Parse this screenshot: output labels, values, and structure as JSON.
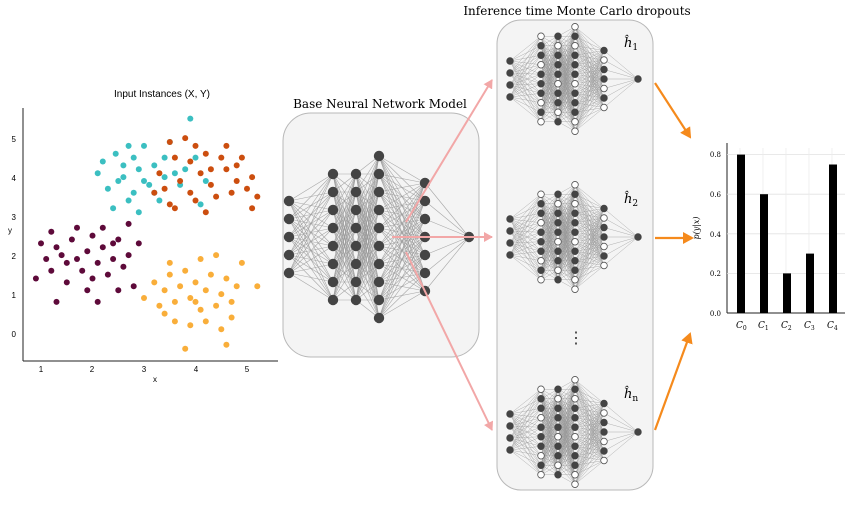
{
  "scatter": {
    "title": "Input Instances (X, Y)",
    "xlabel": "x",
    "ylabel": "y",
    "xticks": [
      "1",
      "2",
      "3",
      "4",
      "5"
    ],
    "yticks": [
      "0",
      "1",
      "2",
      "3",
      "4",
      "5"
    ],
    "colors": {
      "cyan": "#3bbfc1",
      "orange": "#cc4e0f",
      "purple": "#5e0a3a",
      "yellow": "#f9ae3a"
    }
  },
  "chart_data": {
    "type": "scatter",
    "title": "Input Instances (X, Y)",
    "xlabel": "x",
    "ylabel": "y",
    "xlim": [
      0.65,
      5.6
    ],
    "ylim": [
      -0.65,
      5.85
    ],
    "series": [
      {
        "color": "#3bbfc1",
        "points": [
          [
            2.2,
            4.5
          ],
          [
            2.45,
            4.7
          ],
          [
            2.6,
            4.1
          ],
          [
            2.8,
            4.6
          ],
          [
            3.0,
            4.9
          ],
          [
            3.2,
            4.4
          ],
          [
            2.3,
            3.8
          ],
          [
            2.7,
            3.5
          ],
          [
            3.1,
            3.9
          ],
          [
            3.4,
            4.6
          ],
          [
            2.9,
            4.3
          ],
          [
            3.6,
            4.2
          ],
          [
            2.5,
            4.0
          ],
          [
            3.8,
            4.3
          ],
          [
            3.3,
            3.5
          ],
          [
            2.1,
            4.2
          ],
          [
            2.9,
            3.2
          ],
          [
            3.5,
            5.0
          ],
          [
            2.7,
            4.9
          ],
          [
            3.2,
            3.7
          ],
          [
            4.0,
            4.6
          ],
          [
            4.2,
            4.0
          ],
          [
            3.9,
            5.6
          ],
          [
            2.4,
            3.3
          ],
          [
            3.7,
            3.9
          ],
          [
            3.0,
            4.0
          ],
          [
            2.6,
            4.4
          ],
          [
            3.4,
            4.1
          ],
          [
            4.1,
            3.4
          ],
          [
            2.8,
            3.7
          ]
        ]
      },
      {
        "color": "#cc4e0f",
        "points": [
          [
            3.4,
            3.8
          ],
          [
            3.7,
            4.0
          ],
          [
            3.9,
            3.7
          ],
          [
            4.1,
            4.2
          ],
          [
            4.3,
            3.9
          ],
          [
            4.6,
            4.3
          ],
          [
            4.8,
            4.0
          ],
          [
            5.0,
            3.8
          ],
          [
            5.2,
            3.6
          ],
          [
            3.6,
            4.6
          ],
          [
            3.8,
            5.1
          ],
          [
            4.2,
            4.7
          ],
          [
            4.5,
            4.6
          ],
          [
            3.2,
            3.7
          ],
          [
            3.5,
            3.4
          ],
          [
            4.0,
            3.5
          ],
          [
            4.4,
            3.6
          ],
          [
            4.7,
            3.7
          ],
          [
            5.1,
            4.1
          ],
          [
            3.3,
            4.2
          ],
          [
            3.9,
            4.5
          ],
          [
            4.6,
            4.9
          ],
          [
            5.1,
            3.3
          ],
          [
            4.8,
            4.4
          ],
          [
            3.6,
            3.3
          ],
          [
            4.2,
            3.2
          ],
          [
            4.9,
            4.6
          ],
          [
            3.5,
            5.0
          ],
          [
            4.0,
            4.9
          ],
          [
            4.3,
            4.3
          ]
        ]
      },
      {
        "color": "#5e0a3a",
        "points": [
          [
            0.9,
            1.5
          ],
          [
            1.1,
            2.0
          ],
          [
            1.2,
            1.7
          ],
          [
            1.3,
            2.3
          ],
          [
            1.5,
            1.9
          ],
          [
            1.6,
            2.5
          ],
          [
            1.7,
            2.0
          ],
          [
            1.8,
            1.7
          ],
          [
            1.9,
            2.2
          ],
          [
            2.0,
            2.6
          ],
          [
            2.1,
            1.9
          ],
          [
            2.2,
            2.3
          ],
          [
            2.3,
            1.6
          ],
          [
            2.4,
            2.0
          ],
          [
            2.5,
            2.5
          ],
          [
            2.6,
            1.8
          ],
          [
            2.7,
            2.1
          ],
          [
            2.8,
            1.3
          ],
          [
            1.2,
            2.7
          ],
          [
            1.5,
            1.4
          ],
          [
            1.7,
            2.8
          ],
          [
            2.0,
            1.5
          ],
          [
            2.2,
            2.8
          ],
          [
            2.5,
            1.2
          ],
          [
            2.9,
            2.4
          ],
          [
            1.4,
            2.1
          ],
          [
            1.9,
            1.2
          ],
          [
            1.3,
            0.9
          ],
          [
            2.1,
            0.9
          ],
          [
            2.7,
            2.9
          ],
          [
            1.0,
            2.4
          ],
          [
            2.4,
            2.4
          ]
        ]
      },
      {
        "color": "#f9ae3a",
        "points": [
          [
            3.0,
            1.0
          ],
          [
            3.2,
            1.4
          ],
          [
            3.3,
            0.8
          ],
          [
            3.4,
            1.2
          ],
          [
            3.5,
            1.6
          ],
          [
            3.6,
            0.9
          ],
          [
            3.7,
            1.3
          ],
          [
            3.8,
            1.7
          ],
          [
            3.9,
            1.0
          ],
          [
            4.0,
            1.4
          ],
          [
            4.1,
            0.7
          ],
          [
            4.2,
            1.2
          ],
          [
            4.3,
            1.6
          ],
          [
            4.4,
            0.8
          ],
          [
            4.5,
            1.1
          ],
          [
            4.6,
            1.5
          ],
          [
            4.7,
            0.9
          ],
          [
            4.8,
            1.3
          ],
          [
            3.6,
            0.4
          ],
          [
            3.9,
            0.3
          ],
          [
            4.2,
            0.4
          ],
          [
            4.5,
            0.2
          ],
          [
            3.5,
            1.9
          ],
          [
            4.1,
            2.0
          ],
          [
            4.4,
            2.1
          ],
          [
            4.9,
            1.9
          ],
          [
            5.2,
            1.3
          ],
          [
            3.8,
            -0.3
          ],
          [
            4.6,
            -0.2
          ],
          [
            3.4,
            0.6
          ],
          [
            4.0,
            0.9
          ],
          [
            4.7,
            0.5
          ]
        ]
      }
    ]
  },
  "center": {
    "title": "Base Neural Network Model"
  },
  "mc": {
    "title": "Inference time Monte Carlo dropouts",
    "labels": [
      "ĥ",
      "ĥ",
      "ĥ"
    ],
    "subs": [
      "1",
      "2",
      "n"
    ],
    "ellipsis": "⋮"
  },
  "bar": {
    "ylabel": "p(y|x)",
    "yticks": [
      "0.0",
      "0.2",
      "0.4",
      "0.6",
      "0.8"
    ],
    "categories": [
      "C",
      "C",
      "C",
      "C",
      "C"
    ],
    "subs": [
      "0",
      "1",
      "2",
      "3",
      "4"
    ],
    "values": [
      0.8,
      0.6,
      0.2,
      0.3,
      0.75
    ]
  },
  "colors": {
    "node": "#444444",
    "edge": "#9a9a9a",
    "pink": "#f2a7a7",
    "orange_arrow": "#f58a1c"
  }
}
